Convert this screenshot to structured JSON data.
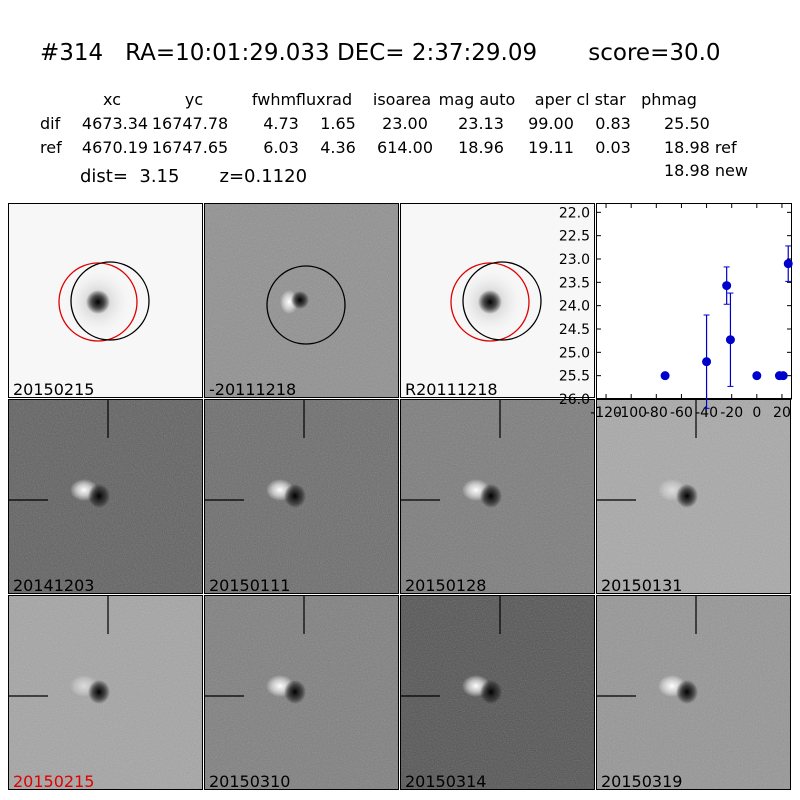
{
  "header": {
    "title": "#314   RA=10:01:29.033 DEC= 2:37:29.09       score=30.0",
    "columns": [
      "xc",
      "yc",
      "fwhm",
      "fluxrad",
      "isoarea",
      "mag auto",
      "aper",
      "cl star",
      "phmag"
    ],
    "rows": [
      {
        "label": "dif",
        "values": [
          "4673.34",
          "16747.78",
          "4.73",
          "1.65",
          "23.00",
          "23.13",
          "99.00",
          "0.83",
          "25.50"
        ]
      },
      {
        "label": "ref",
        "values": [
          "4670.19",
          "16747.65",
          "6.03",
          "4.36",
          "614.00",
          "18.96",
          "19.11",
          "0.03",
          "18.98 ref"
        ]
      }
    ],
    "extra": "18.98 new",
    "dist_line": "dist=  3.15       z=0.1120"
  },
  "stamps": [
    {
      "label": "20150215",
      "kind": "image",
      "bg": "#f7f7f7",
      "circles": "both"
    },
    {
      "label": "-20111218",
      "kind": "diff",
      "bg": "#8f8f8f",
      "circles": "black"
    },
    {
      "label": "R20111218",
      "kind": "image",
      "bg": "#f7f7f7",
      "circles": "both"
    },
    {
      "label": "20141203",
      "kind": "dipole",
      "bg": "#5e5e5e",
      "crosshair": true
    },
    {
      "label": "20150111",
      "kind": "dipole",
      "bg": "#6a6a6a",
      "crosshair": true
    },
    {
      "label": "20150128",
      "kind": "dipole",
      "bg": "#7a7a7a",
      "crosshair": true
    },
    {
      "label": "20150131",
      "kind": "dipole-faint",
      "bg": "#a8a8a8",
      "crosshair": true
    },
    {
      "label": "20150215",
      "kind": "dipole-faint",
      "bg": "#a4a4a4",
      "crosshair": true,
      "label_color": "#e00000"
    },
    {
      "label": "20150310",
      "kind": "dipole",
      "bg": "#7d7d7d",
      "crosshair": true
    },
    {
      "label": "20150314",
      "kind": "dipole",
      "bg": "#505050",
      "crosshair": true
    },
    {
      "label": "20150319",
      "kind": "dipole",
      "bg": "#949494",
      "crosshair": true
    }
  ],
  "chart_data": {
    "type": "scatter",
    "y_ticks": [
      "22.0",
      "22.5",
      "23.0",
      "23.5",
      "24.0",
      "24.5",
      "25.0",
      "25.5",
      "26.0"
    ],
    "x_ticks": [
      "-120",
      "-100",
      "-80",
      "-60",
      "-40",
      "-20",
      "0",
      "20"
    ],
    "xlim": [
      -128,
      28
    ],
    "ylim": [
      26.0,
      21.8
    ],
    "y_inverted": true,
    "points": [
      {
        "x": -73,
        "y": 25.5,
        "err": 0.0
      },
      {
        "x": -40,
        "y": 25.2,
        "err": 1.0
      },
      {
        "x": -24,
        "y": 23.57,
        "err": 0.4
      },
      {
        "x": -21,
        "y": 24.73,
        "err": 1.0
      },
      {
        "x": 0,
        "y": 25.5,
        "err": 0.0
      },
      {
        "x": 18,
        "y": 25.5,
        "err": 0.0
      },
      {
        "x": 21,
        "y": 25.5,
        "err": 0.0
      },
      {
        "x": 25,
        "y": 23.1,
        "err": 0.38
      }
    ],
    "color": "#0000cc"
  }
}
